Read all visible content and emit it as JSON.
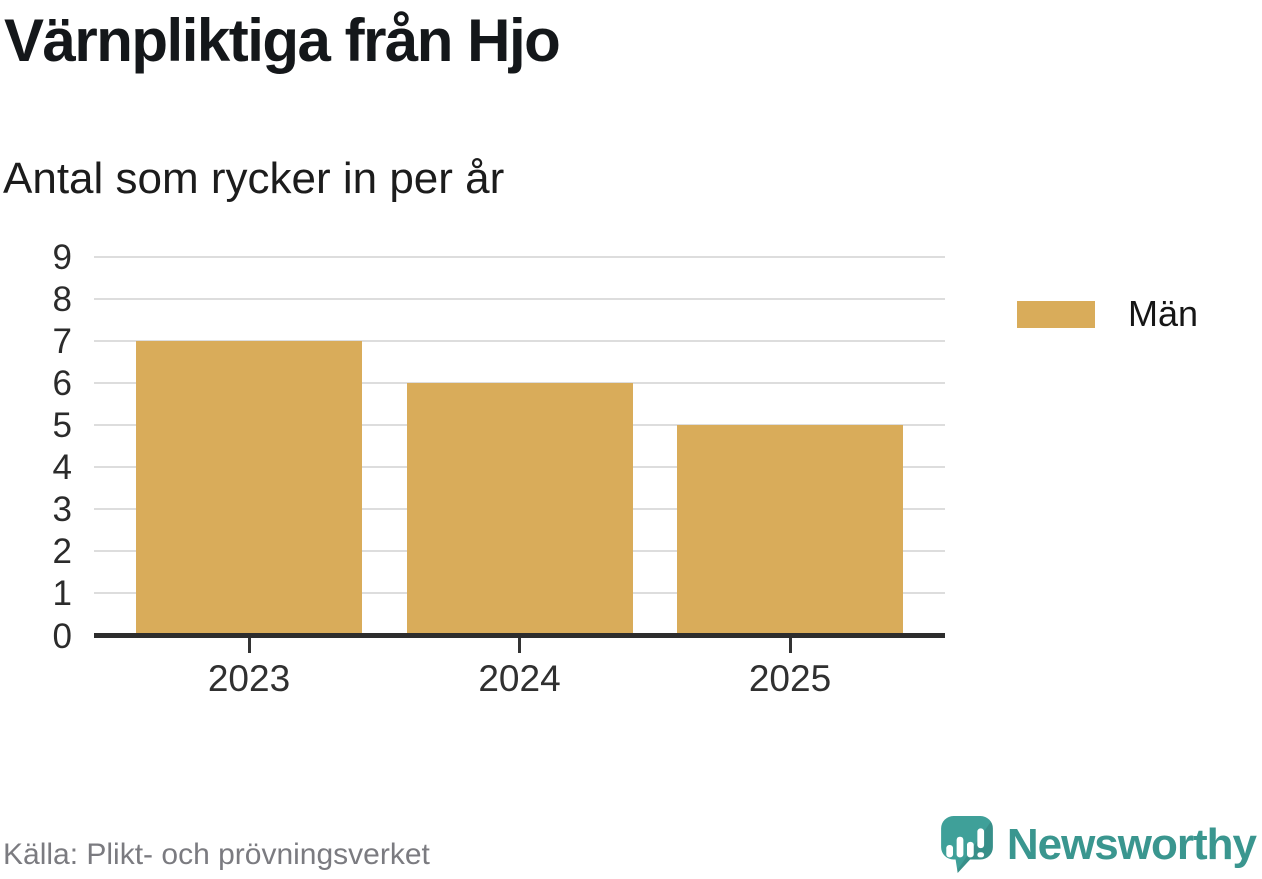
{
  "chart_data": {
    "type": "bar",
    "title": "Värnpliktiga från Hjo",
    "subtitle": "Antal som rycker in per år",
    "categories": [
      "2023",
      "2024",
      "2025"
    ],
    "series": [
      {
        "name": "Män",
        "values": [
          7,
          6,
          5
        ]
      }
    ],
    "ylim": [
      0,
      9
    ],
    "ytick_step": 1,
    "ytick_labels": [
      "0",
      "1",
      "2",
      "3",
      "4",
      "5",
      "6",
      "7",
      "8",
      "9"
    ],
    "grid": "horizontal",
    "legend_position": "right",
    "bar_color": "#d9ac5a"
  },
  "footer": {
    "source": "Källa: Plikt- och prövningsverket"
  },
  "branding": {
    "name": "Newsworthy",
    "logo_icon": "newsworthy-speech-bubble-bar-chart-icon",
    "brand_color": "#3a968f",
    "icon_color": "#3fa099"
  },
  "colors": {
    "bar": "#d9ac5a",
    "gridline": "#dddddd",
    "axis": "#2d2d2d",
    "text": "#1c1c1c",
    "muted_text": "#7b7b80",
    "teal": "#3a968f"
  }
}
